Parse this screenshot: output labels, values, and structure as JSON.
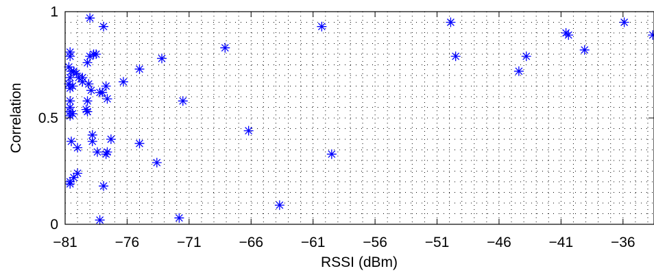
{
  "chart_data": {
    "type": "scatter",
    "title": "",
    "xlabel": "RSSI (dBm)",
    "ylabel": "Correlation",
    "xlim": [
      -81,
      -33.5
    ],
    "ylim": [
      0,
      1
    ],
    "xticks": [
      -81,
      -76,
      -71,
      -66,
      -61,
      -56,
      -51,
      -46,
      -41,
      -36
    ],
    "xtick_labels": [
      "−81",
      "−76",
      "−71",
      "−66",
      "−61",
      "−56",
      "−51",
      "−46",
      "−41",
      "−36"
    ],
    "yticks": [
      0,
      0.5,
      1
    ],
    "ytick_labels": [
      "0",
      "0.5",
      "1"
    ],
    "grid": true,
    "marker": "asterisk",
    "color": "#0000ff",
    "series": [
      {
        "points": [
          [
            -80.6,
            0.81
          ],
          [
            -80.6,
            0.79
          ],
          [
            -80.7,
            0.74
          ],
          [
            -80.5,
            0.72
          ],
          [
            -80.3,
            0.72
          ],
          [
            -80.1,
            0.71
          ],
          [
            -80.6,
            0.69
          ],
          [
            -80.7,
            0.66
          ],
          [
            -80.6,
            0.64
          ],
          [
            -80.4,
            0.65
          ],
          [
            -80.6,
            0.58
          ],
          [
            -80.6,
            0.55
          ],
          [
            -80.6,
            0.53
          ],
          [
            -80.4,
            0.52
          ],
          [
            -80.6,
            0.51
          ],
          [
            -80.5,
            0.39
          ],
          [
            -80.6,
            0.2
          ],
          [
            -80.6,
            0.19
          ],
          [
            -80.3,
            0.22
          ],
          [
            -80.0,
            0.24
          ],
          [
            -80.0,
            0.36
          ],
          [
            -79.9,
            0.69
          ],
          [
            -79.6,
            0.67
          ],
          [
            -79.6,
            0.69
          ],
          [
            -79.2,
            0.58
          ],
          [
            -79.3,
            0.54
          ],
          [
            -79.2,
            0.53
          ],
          [
            -79.2,
            0.76
          ],
          [
            -79.0,
            0.79
          ],
          [
            -78.7,
            0.8
          ],
          [
            -78.5,
            0.8
          ],
          [
            -79.0,
            0.97
          ],
          [
            -79.1,
            0.66
          ],
          [
            -78.9,
            0.63
          ],
          [
            -78.8,
            0.42
          ],
          [
            -78.8,
            0.39
          ],
          [
            -78.4,
            0.34
          ],
          [
            -78.2,
            0.02
          ],
          [
            -78.2,
            0.62
          ],
          [
            -78.0,
            0.62
          ],
          [
            -77.7,
            0.65
          ],
          [
            -77.9,
            0.93
          ],
          [
            -77.9,
            0.18
          ],
          [
            -77.7,
            0.33
          ],
          [
            -77.6,
            0.34
          ],
          [
            -77.6,
            0.59
          ],
          [
            -77.3,
            0.4
          ],
          [
            -76.3,
            0.67
          ],
          [
            -75.0,
            0.73
          ],
          [
            -75.0,
            0.38
          ],
          [
            -73.6,
            0.29
          ],
          [
            -73.2,
            0.78
          ],
          [
            -71.8,
            0.03
          ],
          [
            -71.5,
            0.58
          ],
          [
            -68.1,
            0.83
          ],
          [
            -66.2,
            0.44
          ],
          [
            -63.7,
            0.09
          ],
          [
            -60.3,
            0.93
          ],
          [
            -59.5,
            0.33
          ],
          [
            -49.9,
            0.95
          ],
          [
            -49.5,
            0.79
          ],
          [
            -44.4,
            0.72
          ],
          [
            -43.8,
            0.79
          ],
          [
            -40.6,
            0.9
          ],
          [
            -40.4,
            0.89
          ],
          [
            -39.1,
            0.82
          ],
          [
            -35.9,
            0.95
          ],
          [
            -33.6,
            0.89
          ]
        ]
      }
    ]
  }
}
